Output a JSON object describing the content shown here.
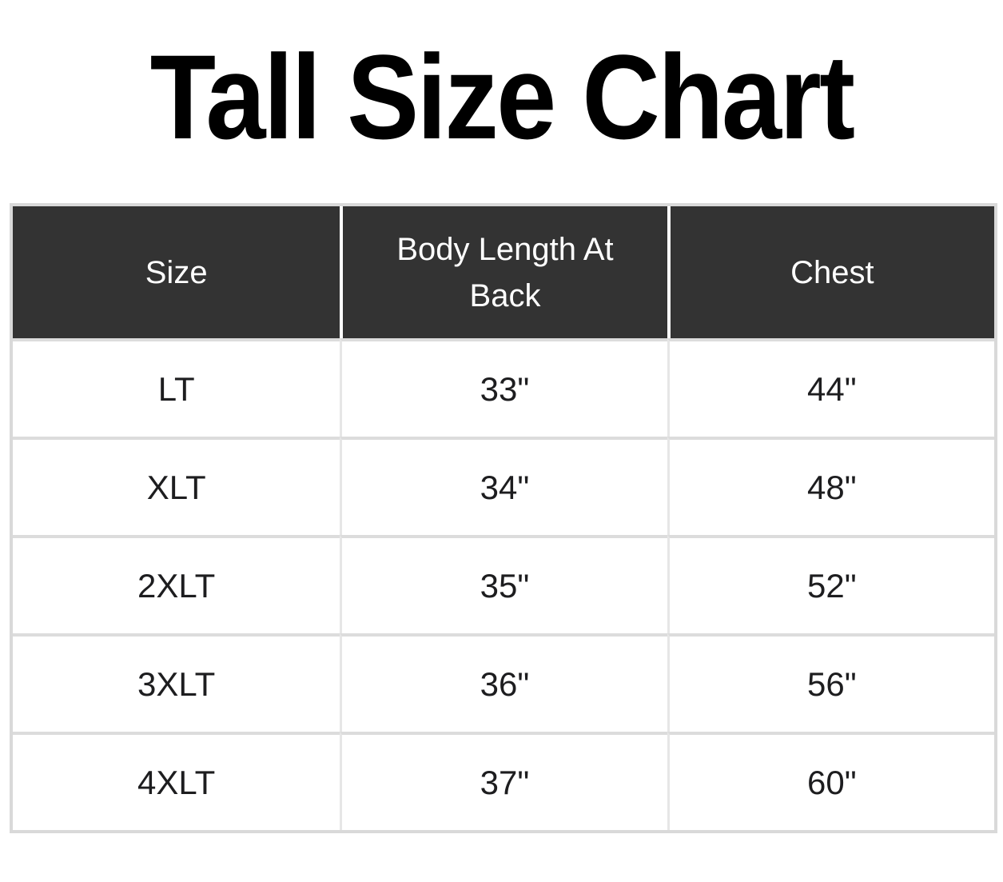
{
  "page": {
    "title": "Tall Size Chart"
  },
  "colors": {
    "page_background": "#ffffff",
    "title_text": "#000000",
    "header_background": "#333333",
    "header_text": "#ffffff",
    "cell_text": "#1d1d1f",
    "row_divider": "#dcdcdc",
    "table_border": "#d9d9d9"
  },
  "table": {
    "columns": [
      "Size",
      "Body Length At Back",
      "Chest"
    ],
    "rows": [
      {
        "size": "LT",
        "body_length_at_back": "33\"",
        "chest": "44\""
      },
      {
        "size": "XLT",
        "body_length_at_back": "34\"",
        "chest": "48\""
      },
      {
        "size": "2XLT",
        "body_length_at_back": "35\"",
        "chest": "52\""
      },
      {
        "size": "3XLT",
        "body_length_at_back": "36\"",
        "chest": "56\""
      },
      {
        "size": "4XLT",
        "body_length_at_back": "37\"",
        "chest": "60\""
      }
    ]
  }
}
